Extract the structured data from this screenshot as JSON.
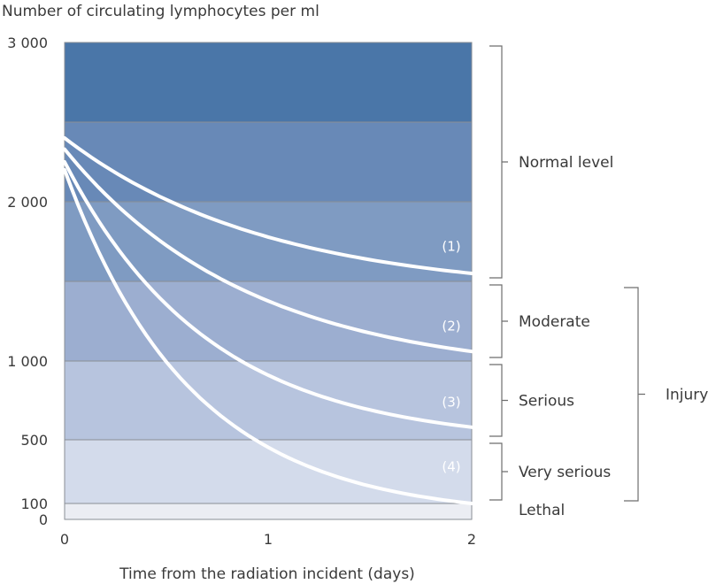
{
  "chart_data": {
    "type": "line",
    "ylabel": "Number of circulating lymphocytes per ml",
    "xlabel": "Time from the radiation incident (days)",
    "x_ticks": [
      "0",
      "1",
      "2"
    ],
    "xlim": [
      0,
      2
    ],
    "y_ticks": [
      {
        "label": "3 000",
        "value": 3000
      },
      {
        "label": "2 000",
        "value": 2000
      },
      {
        "label": "1 000",
        "value": 1000
      },
      {
        "label": "500",
        "value": 500
      },
      {
        "label": "100",
        "value": 100
      },
      {
        "label": "0",
        "value": 0
      }
    ],
    "bands": [
      {
        "from": 2500,
        "to": 3000,
        "color": "#4a76a8"
      },
      {
        "from": 2000,
        "to": 2500,
        "color": "#6889b7"
      },
      {
        "from": 1500,
        "to": 2000,
        "color": "#7f9bc2"
      },
      {
        "from": 1000,
        "to": 1500,
        "color": "#9caed0"
      },
      {
        "from": 500,
        "to": 1000,
        "color": "#b7c4de"
      },
      {
        "from": 100,
        "to": 500,
        "color": "#d3dbeb"
      },
      {
        "from": 0,
        "to": 100,
        "color": "#ebedf3"
      }
    ],
    "series": [
      {
        "name": "(1)",
        "start": 2400,
        "end": 1550,
        "label_x": 1.9,
        "label_y": 1720,
        "curvature": 2.0
      },
      {
        "name": "(2)",
        "start": 2330,
        "end": 1060,
        "label_x": 1.9,
        "label_y": 1220,
        "curvature": 2.2
      },
      {
        "name": "(3)",
        "start": 2250,
        "end": 580,
        "label_x": 1.9,
        "label_y": 740,
        "curvature": 2.8
      },
      {
        "name": "(4)",
        "start": 2200,
        "end": 100,
        "label_x": 1.9,
        "label_y": 330,
        "curvature": 3.2
      }
    ],
    "categories": [
      {
        "label": "Normal level",
        "from": 1500,
        "to": 3000
      },
      {
        "label": "Moderate",
        "from": 1000,
        "to": 1500
      },
      {
        "label": "Serious",
        "from": 500,
        "to": 1000
      },
      {
        "label": "Very serious",
        "from": 100,
        "to": 500
      },
      {
        "label": "Lethal",
        "from": 0,
        "to": 100
      }
    ],
    "group": {
      "label": "Injury",
      "from": 100,
      "to": 1500
    }
  }
}
